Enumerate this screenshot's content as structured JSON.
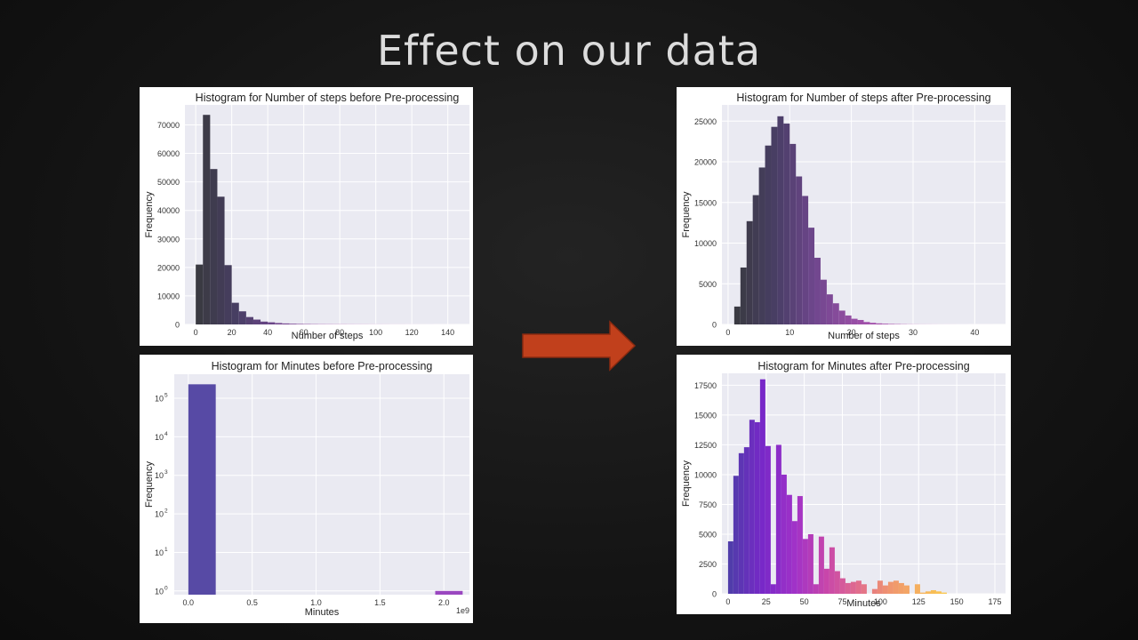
{
  "slide": {
    "title": "Effect on our data"
  },
  "arrow": {
    "color": "#c1401c"
  },
  "chart_data": [
    {
      "id": "steps-before",
      "type": "histogram",
      "title": "Histogram for Number of steps before Pre-processing",
      "xlabel": "Number of steps",
      "ylabel": "Frequency",
      "xlim": [
        -6,
        152
      ],
      "ylim": [
        0,
        77000
      ],
      "xticks": [
        0,
        20,
        40,
        60,
        80,
        100,
        120,
        140
      ],
      "yticks": [
        0,
        10000,
        20000,
        30000,
        40000,
        50000,
        60000,
        70000
      ],
      "yscale": "linear",
      "bin_start": 0,
      "bin_width": 4,
      "values": [
        21000,
        73500,
        54500,
        44800,
        20800,
        7600,
        4600,
        2600,
        1700,
        1000,
        750,
        500,
        350,
        250,
        180,
        140,
        110,
        90,
        80,
        70,
        60,
        50,
        45,
        40,
        35,
        30,
        25,
        20,
        18,
        15,
        12,
        10,
        8,
        6,
        5,
        4
      ],
      "color_range": [
        0,
        1
      ],
      "grid": true
    },
    {
      "id": "steps-after",
      "type": "histogram",
      "title": "Histogram for Number of steps after Pre-processing",
      "xlabel": "Number of steps",
      "ylabel": "Frequency",
      "xlim": [
        -1,
        45
      ],
      "ylim": [
        0,
        27000
      ],
      "xticks": [
        0,
        10,
        20,
        30,
        40
      ],
      "yticks": [
        0,
        5000,
        10000,
        15000,
        20000,
        25000
      ],
      "yscale": "linear",
      "bin_start": 1,
      "bin_width": 1,
      "values": [
        2200,
        7000,
        12700,
        15900,
        19300,
        22000,
        24300,
        25600,
        24700,
        22200,
        18200,
        15800,
        11900,
        8200,
        5500,
        3700,
        2600,
        1700,
        1100,
        700,
        550,
        300,
        200,
        130,
        90,
        60,
        45,
        30,
        20,
        15,
        12,
        10,
        8,
        6,
        5,
        4,
        3,
        3,
        2,
        2,
        1,
        1
      ],
      "color_range": [
        0,
        1
      ],
      "grid": true
    },
    {
      "id": "minutes-before",
      "type": "histogram",
      "title": "Histogram for Minutes before Pre-processing",
      "xlabel": "Minutes",
      "ylabel": "Frequency",
      "x_offset_label": "1e9",
      "xlim": [
        -0.11,
        2.2
      ],
      "ylim": [
        0.8,
        420000
      ],
      "xticks": [
        0,
        0.5,
        1,
        1.5,
        2
      ],
      "xtick_labels": [
        "0.0",
        "0.5",
        "1.0",
        "1.5",
        "2.0"
      ],
      "yticks": [
        1,
        10,
        100,
        1000,
        10000,
        100000
      ],
      "ytick_labels": [
        [
          "10",
          "0"
        ],
        [
          "10",
          "1"
        ],
        [
          "10",
          "2"
        ],
        [
          "10",
          "3"
        ],
        [
          "10",
          "4"
        ],
        [
          "10",
          "5"
        ]
      ],
      "yscale": "log",
      "bin_start": 0,
      "bin_width": 0.2147,
      "values": [
        230000,
        0,
        0,
        0,
        0,
        0,
        0,
        0,
        0,
        1
      ],
      "colors": [
        "#574aa5",
        "#574aa5",
        "#574aa5",
        "#574aa5",
        "#574aa5",
        "#574aa5",
        "#574aa5",
        "#574aa5",
        "#574aa5",
        "#9a47c0"
      ],
      "grid": true
    },
    {
      "id": "minutes-after",
      "type": "histogram",
      "title": "Histogram for Minutes after Pre-processing",
      "xlabel": "Minutes",
      "ylabel": "Frequency",
      "xlim": [
        -4,
        182
      ],
      "ylim": [
        0,
        18500
      ],
      "xticks": [
        0,
        25,
        50,
        75,
        100,
        125,
        150,
        175
      ],
      "yticks": [
        0,
        2500,
        5000,
        7500,
        10000,
        12500,
        15000,
        17500
      ],
      "yscale": "linear",
      "bin_start": 0,
      "bin_width": 3.5,
      "values": [
        4400,
        9900,
        11800,
        12300,
        14600,
        14400,
        18000,
        12400,
        800,
        12500,
        10000,
        8300,
        6100,
        8200,
        4600,
        5000,
        800,
        4800,
        2100,
        3900,
        1900,
        1300,
        900,
        1000,
        1100,
        800,
        0,
        400,
        1100,
        700,
        1000,
        1100,
        900,
        700,
        0,
        800,
        100,
        200,
        300,
        200,
        100
      ],
      "color_range": [
        0,
        1
      ],
      "grid": true
    }
  ]
}
